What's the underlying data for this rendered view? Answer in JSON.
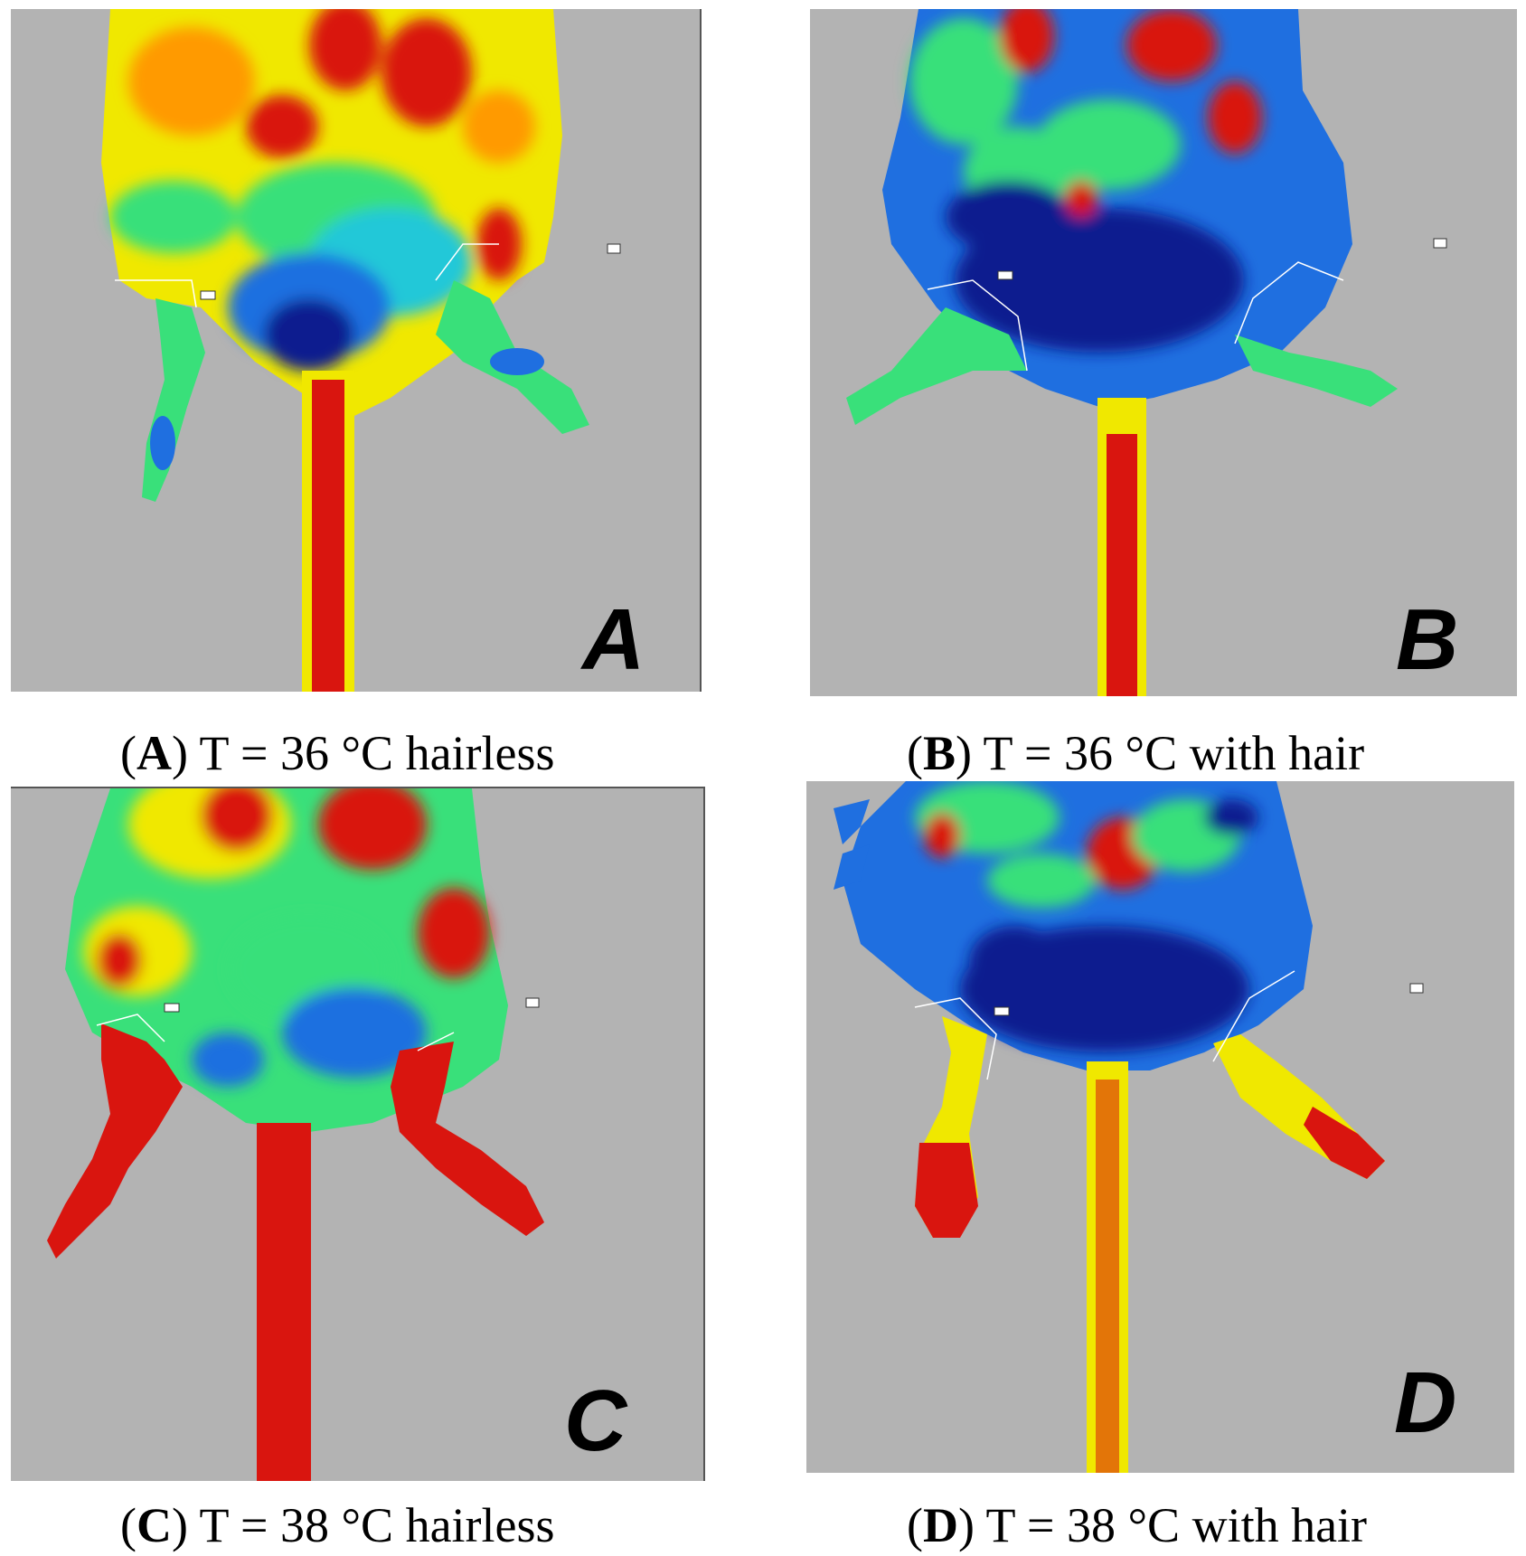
{
  "panels": [
    {
      "id": "A",
      "letter": "A",
      "caption": {
        "letter": "A",
        "text": "T = 36 °C hairless"
      },
      "scheme": "warm",
      "legs": "red-free"
    },
    {
      "id": "B",
      "letter": "B",
      "caption": {
        "letter": "B",
        "text": "T = 36 °C with hair"
      },
      "scheme": "cool",
      "legs": "green"
    },
    {
      "id": "C",
      "letter": "C",
      "caption": {
        "letter": "C",
        "text": "T = 38 °C hairless"
      },
      "scheme": "warm",
      "legs": "red"
    },
    {
      "id": "D",
      "letter": "D",
      "caption": {
        "letter": "D",
        "text": "T = 38 °C with hair"
      },
      "scheme": "cool",
      "legs": "yellow-red"
    }
  ],
  "colors": {
    "background": "#b3b3b3",
    "hot": "#d9150f",
    "warm": "#ff9a00",
    "mid": "#f5f000",
    "neutral": "#39e07a",
    "cool": "#1f6fe0",
    "cold": "#0a1a8f"
  }
}
